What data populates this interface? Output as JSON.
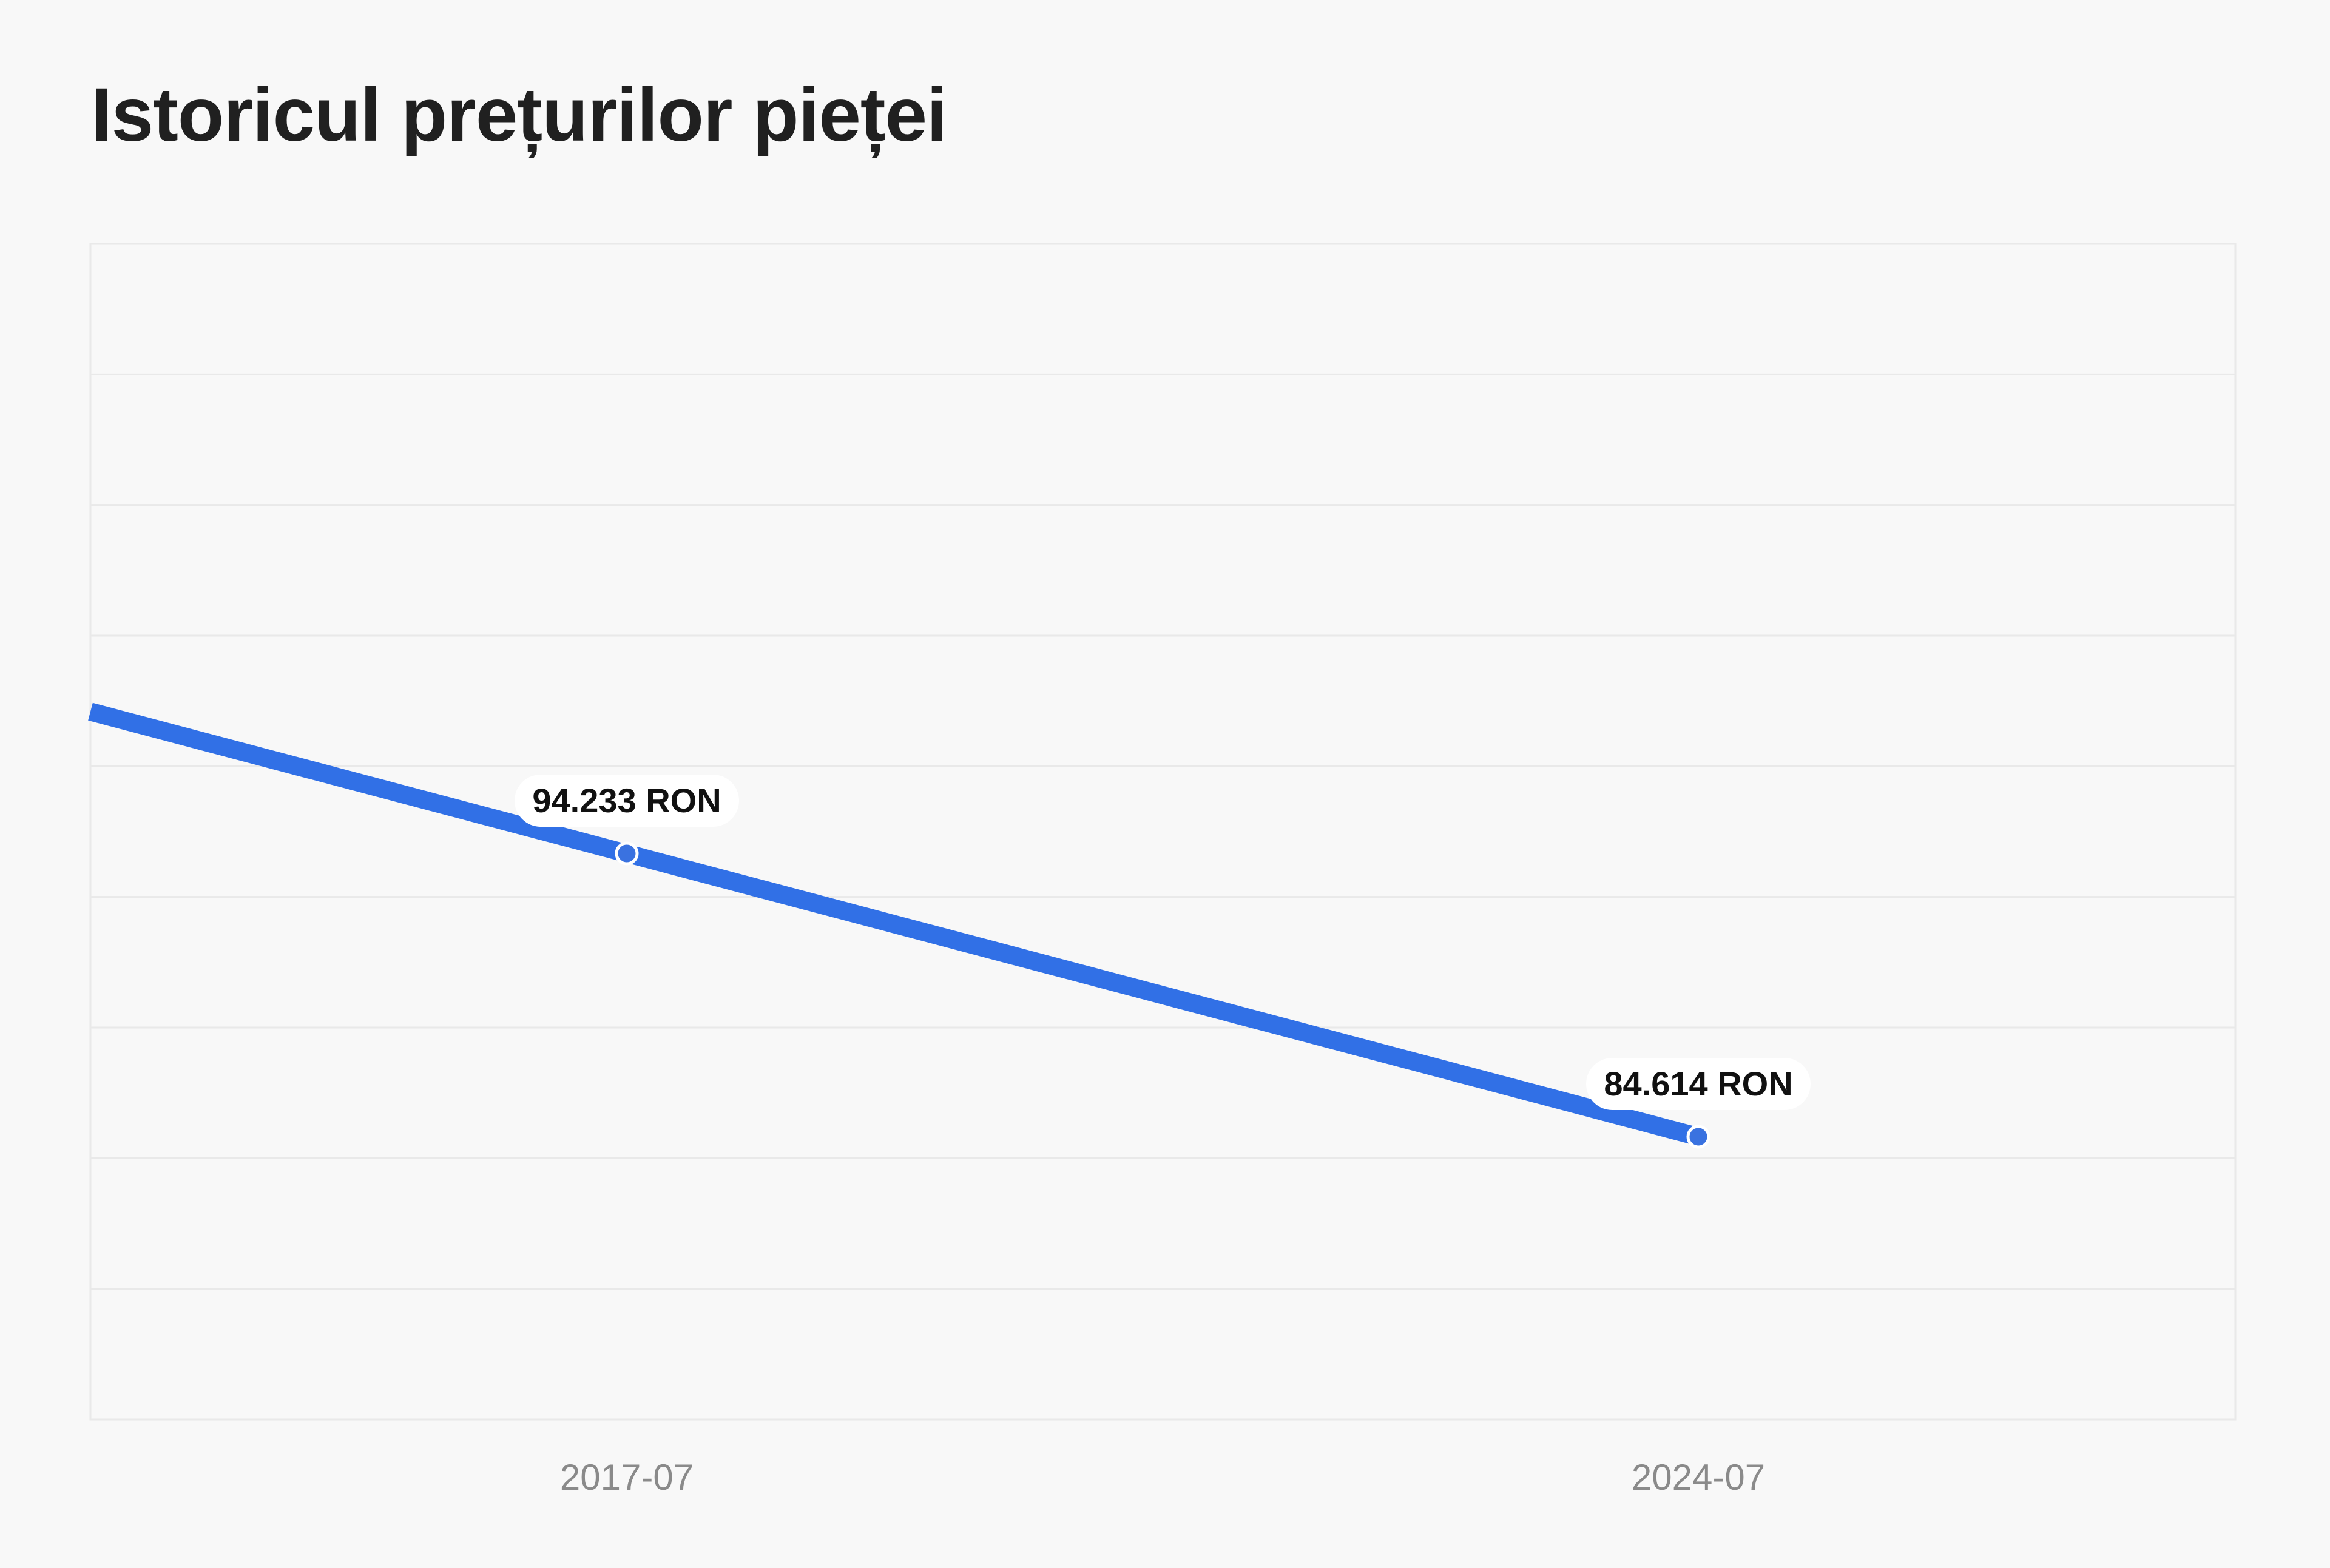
{
  "header": {
    "title": "Istoricul prețurilor pieței"
  },
  "colors": {
    "line": "#3170e6",
    "point": "#3a72e0",
    "background": "#f8f8f8",
    "grid": "#e9e9e9"
  },
  "chart_data": {
    "type": "line",
    "title": "Istoricul prețurilor pieței",
    "xlabel": "",
    "ylabel": "",
    "grid": true,
    "legend": "none",
    "categories": [
      "2017-07",
      "2024-07"
    ],
    "series": [
      {
        "values": [
          94.233,
          84.614
        ],
        "labels": [
          "94.233 RON",
          "84.614 RON"
        ]
      }
    ]
  }
}
